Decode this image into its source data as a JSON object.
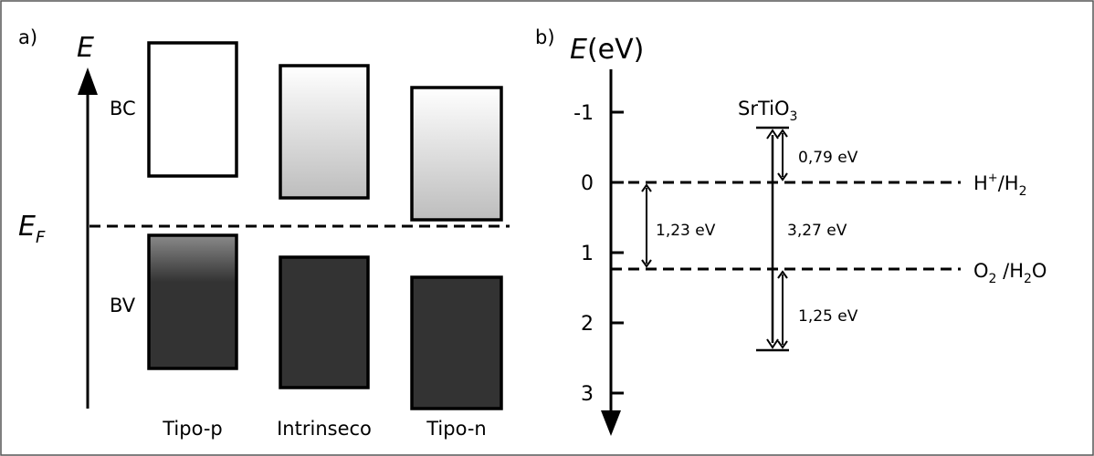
{
  "panel_a": {
    "label": "a)",
    "axis_label": "E",
    "fermi_label": "E",
    "fermi_subscript": "F",
    "bc_label": "BC",
    "bv_label": "BV",
    "columns": [
      {
        "label": "Tipo-p"
      },
      {
        "label": "Intrinseco"
      },
      {
        "label": "Tipo-n"
      }
    ]
  },
  "panel_b": {
    "label": "b)",
    "axis_label_italic": "E",
    "axis_label_unit": "(eV)",
    "ticks": [
      "-1",
      "0",
      "1",
      "2",
      "3"
    ],
    "material_prefix": "SrTiO",
    "material_sub": "3",
    "levels": {
      "h_label_main": "H",
      "h_label_sup": "+",
      "h_label_rest": "/H",
      "h_label_sub": "2",
      "o_label_o": "O",
      "o_label_sub1": "2",
      "o_label_mid": " /H",
      "o_label_sub2": "2",
      "o_label_end": "O"
    },
    "gaps": {
      "conduction_offset": "0,79 eV",
      "water_split": "1,23 eV",
      "band_gap": "3,27 eV",
      "valence_offset": "1,25 eV"
    }
  },
  "colors": {
    "frame": "#555555",
    "band_dark": "#333333",
    "line": "#000000"
  }
}
